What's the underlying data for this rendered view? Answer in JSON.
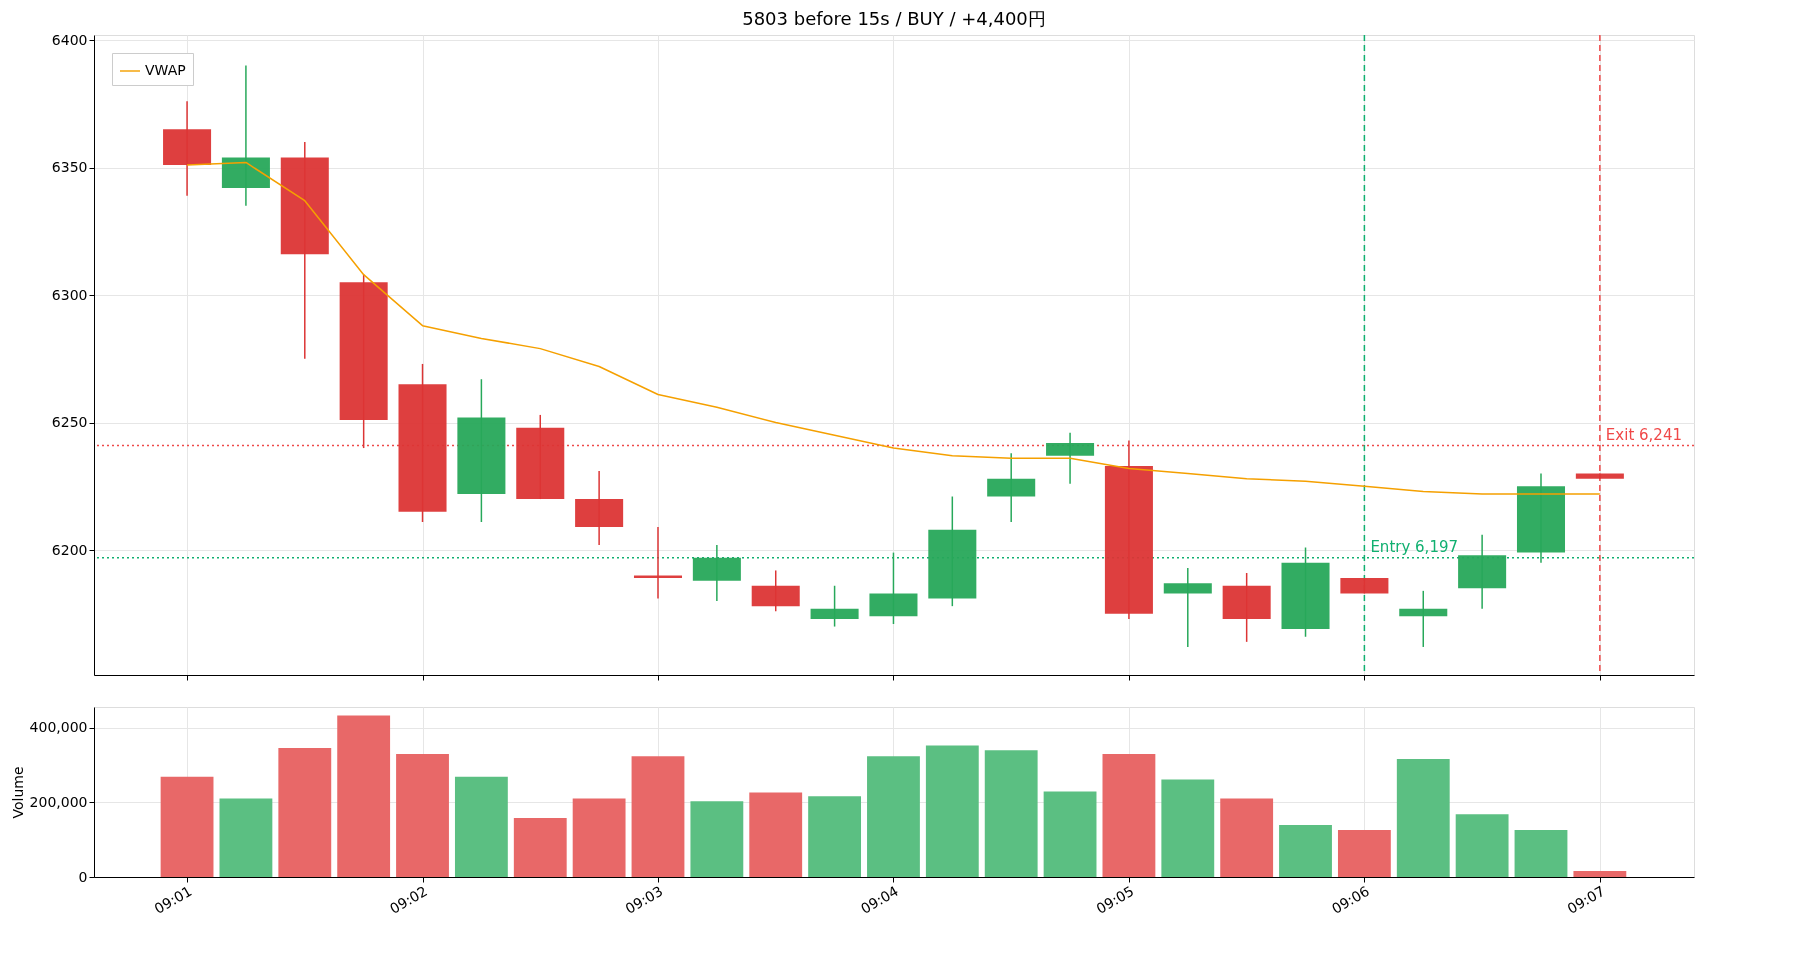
{
  "chart_data": [
    {
      "type": "candlestick",
      "title": "5803 before 15s / BUY / +4,400円",
      "x": [
        9.016667,
        9.020833,
        9.025,
        9.029167,
        9.033333,
        9.0375,
        9.041667,
        9.045833,
        9.05,
        9.054167,
        9.058333,
        9.0625,
        9.066667,
        9.070833,
        9.075,
        9.079167,
        9.083333,
        9.0875,
        9.091667,
        9.095833,
        9.1,
        9.104167,
        9.108333,
        9.1125,
        9.116667
      ],
      "ohlc": [
        [
          6365,
          6376,
          6339,
          6351
        ],
        [
          6342,
          6390,
          6335,
          6354
        ],
        [
          6354,
          6360,
          6275,
          6316
        ],
        [
          6305,
          6308,
          6240,
          6251
        ],
        [
          6265,
          6273,
          6211,
          6215
        ],
        [
          6222,
          6267,
          6211,
          6252
        ],
        [
          6248,
          6253,
          6220,
          6220
        ],
        [
          6220,
          6231,
          6202,
          6209
        ],
        [
          6190,
          6209,
          6181,
          6189
        ],
        [
          6188,
          6202,
          6180,
          6197
        ],
        [
          6186,
          6192,
          6176,
          6178
        ],
        [
          6173,
          6186,
          6170,
          6177
        ],
        [
          6174,
          6199,
          6171,
          6183
        ],
        [
          6181,
          6221,
          6178,
          6208
        ],
        [
          6221,
          6238,
          6211,
          6228
        ],
        [
          6237,
          6246,
          6226,
          6242
        ],
        [
          6233,
          6243,
          6173,
          6175
        ],
        [
          6183,
          6193,
          6162,
          6187
        ],
        [
          6186,
          6191,
          6164,
          6173
        ],
        [
          6169,
          6201,
          6166,
          6195
        ],
        [
          6189,
          6189,
          6183,
          6183
        ],
        [
          6174,
          6184,
          6162,
          6177
        ],
        [
          6185,
          6206,
          6177,
          6198
        ],
        [
          6199,
          6230,
          6195,
          6225
        ],
        [
          6230,
          6230,
          6228,
          6228
        ]
      ],
      "colors": [
        "#dc3535",
        "#27a85a",
        "#dc3535",
        "#dc3535",
        "#dc3535",
        "#27a85a",
        "#dc3535",
        "#dc3535",
        "#dc3535",
        "#27a85a",
        "#dc3535",
        "#27a85a",
        "#27a85a",
        "#27a85a",
        "#27a85a",
        "#27a85a",
        "#dc3535",
        "#27a85a",
        "#dc3535",
        "#27a85a",
        "#dc3535",
        "#27a85a",
        "#27a85a",
        "#27a85a",
        "#dc3535"
      ],
      "series": [
        {
          "type": "line",
          "name": "VWAP",
          "color": "#f5a000",
          "values": [
            6351,
            6352,
            6337,
            6308,
            6288,
            6283,
            6279,
            6272,
            6261,
            6256,
            6250,
            6245,
            6240,
            6237,
            6236,
            6236,
            6232,
            6230,
            6228,
            6227,
            6225,
            6223,
            6222,
            6222,
            6222
          ]
        }
      ],
      "xlim": [
        9.01008,
        9.12333
      ],
      "xticks": [
        {
          "value": 9.016667,
          "label": null
        },
        {
          "value": 9.033333,
          "label": null
        },
        {
          "value": 9.05,
          "label": null
        },
        {
          "value": 9.066667,
          "label": null
        },
        {
          "value": 9.083333,
          "label": null
        },
        {
          "value": 9.1,
          "label": null
        },
        {
          "value": 9.116667,
          "label": null
        }
      ],
      "ylim": [
        6151,
        6402
      ],
      "yticks": [
        6200,
        6250,
        6300,
        6350,
        6400
      ],
      "tick_labels": "y",
      "grid": true,
      "legend": "top left",
      "ref_lines": [
        {
          "axis": "y",
          "value": 6241,
          "color": "#f04848",
          "line_style": "dotted"
        },
        {
          "axis": "y",
          "value": 6197,
          "color": "#10b070",
          "line_style": "dotted"
        },
        {
          "axis": "x",
          "value": 9.1,
          "color": "#10b070",
          "line_style": "dashed"
        },
        {
          "axis": "x",
          "value": 9.116667,
          "color": "#f04848",
          "line_style": "dashed"
        }
      ],
      "annotations": [
        {
          "text": "Entry 6,197",
          "x": 9.1,
          "y": 6197
        },
        {
          "text": "Exit 6,241",
          "x": 9.116667,
          "y": 6241
        }
      ]
    },
    {
      "type": "bar",
      "ylabel": "Volume",
      "x": [
        9.016667,
        9.020833,
        9.025,
        9.029167,
        9.033333,
        9.0375,
        9.041667,
        9.045833,
        9.05,
        9.054167,
        9.058333,
        9.0625,
        9.066667,
        9.070833,
        9.075,
        9.079167,
        9.083333,
        9.0875,
        9.091667,
        9.095833,
        9.1,
        9.104167,
        9.108333,
        9.1125,
        9.116667
      ],
      "values": [
        268000,
        210000,
        345000,
        432000,
        329000,
        268000,
        158000,
        210000,
        323000,
        203000,
        226000,
        216000,
        323000,
        352000,
        339000,
        229000,
        329000,
        261000,
        210000,
        139000,
        126000,
        316000,
        168000,
        126000,
        16000
      ],
      "colors": [
        "#e86868",
        "#5bbf82",
        "#e86868",
        "#e86868",
        "#e86868",
        "#5bbf82",
        "#e86868",
        "#e86868",
        "#e86868",
        "#5bbf82",
        "#e86868",
        "#5bbf82",
        "#5bbf82",
        "#5bbf82",
        "#5bbf82",
        "#5bbf82",
        "#e86868",
        "#5bbf82",
        "#e86868",
        "#5bbf82",
        "#e86868",
        "#5bbf82",
        "#5bbf82",
        "#5bbf82",
        "#e86868"
      ],
      "xlim": [
        9.01008,
        9.12333
      ],
      "xticks": [
        {
          "value": 9.016667,
          "label": "09:01"
        },
        {
          "value": 9.033333,
          "label": "09:02"
        },
        {
          "value": 9.05,
          "label": "09:03"
        },
        {
          "value": 9.066667,
          "label": "09:04"
        },
        {
          "value": 9.083333,
          "label": "09:05"
        },
        {
          "value": 9.1,
          "label": "09:06"
        },
        {
          "value": 9.116667,
          "label": "09:07"
        }
      ],
      "ylim": [
        0,
        455000
      ],
      "yticks": [
        {
          "value": 0,
          "label": "0"
        },
        {
          "value": 200000,
          "label": "200,000"
        },
        {
          "value": 400000,
          "label": "400,000"
        }
      ],
      "grid": true
    }
  ]
}
